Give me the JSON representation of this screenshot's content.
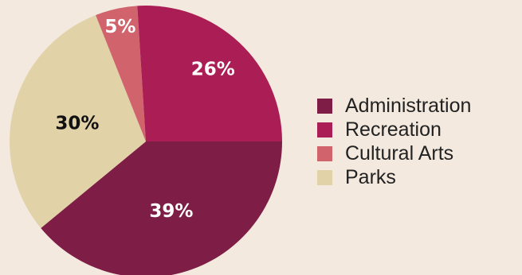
{
  "chart_data": {
    "type": "pie",
    "title": "",
    "series": [
      {
        "name": "Administration",
        "value": 39,
        "label": "39%",
        "color": "#7E1E46",
        "label_color": "#FFFFFF"
      },
      {
        "name": "Parks",
        "value": 30,
        "label": "30%",
        "color": "#E1D2A8",
        "label_color": "#111111"
      },
      {
        "name": "Cultural Arts",
        "value": 5,
        "label": "5%",
        "color": "#D1636D",
        "label_color": "#FFFFFF"
      },
      {
        "name": "Recreation",
        "value": 26,
        "label": "26%",
        "color": "#AA1D55",
        "label_color": "#FFFFFF"
      }
    ],
    "legend_position": "right",
    "legend": [
      {
        "label": "Administration",
        "color": "#7E1E46"
      },
      {
        "label": "Recreation",
        "color": "#AA1D55"
      },
      {
        "label": "Cultural Arts",
        "color": "#D1636D"
      },
      {
        "label": "Parks",
        "color": "#E1D2A8"
      }
    ]
  },
  "colors": {
    "background": "#F3E9DE"
  }
}
